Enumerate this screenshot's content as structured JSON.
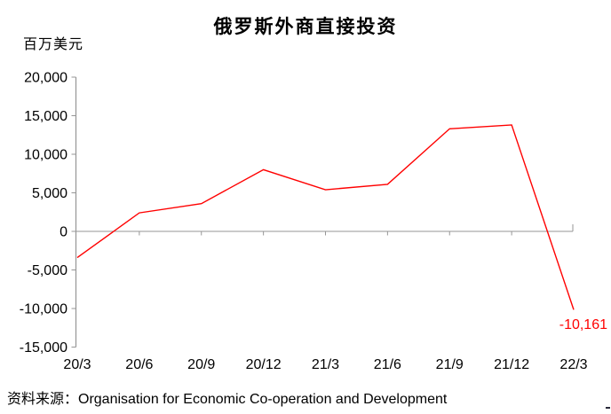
{
  "page": {
    "background": "#FFFFFF"
  },
  "chart_data": {
    "type": "line",
    "title": "俄罗斯外商直接投资",
    "unit_label": "百万美元",
    "xlabel": "",
    "ylabel": "百万美元",
    "categories": [
      "20/3",
      "20/6",
      "20/9",
      "20/12",
      "21/3",
      "21/6",
      "21/9",
      "21/12",
      "22/3"
    ],
    "series": [
      {
        "name": "俄罗斯外商直接投资",
        "color": "#FF0000",
        "values": [
          -3400,
          2400,
          3600,
          8000,
          5400,
          6100,
          13300,
          13800,
          -10161
        ]
      }
    ],
    "last_point_label": "-10,161",
    "last_point_label_color": "#FF0000",
    "ylim": [
      -15000,
      20000
    ],
    "ytick_step": 5000,
    "ytick_labels": [
      "20,000",
      "15,000",
      "10,000",
      "5,000",
      "0",
      "-5,000",
      "-10,000",
      "-15,000"
    ],
    "grid": "zero-baseline-only",
    "legend_position": "none",
    "axis_color": "#969696",
    "text_color": "#000000"
  },
  "source": {
    "label": "资料来源：Organisation  for  Economic  Co-operation  and  Development"
  }
}
